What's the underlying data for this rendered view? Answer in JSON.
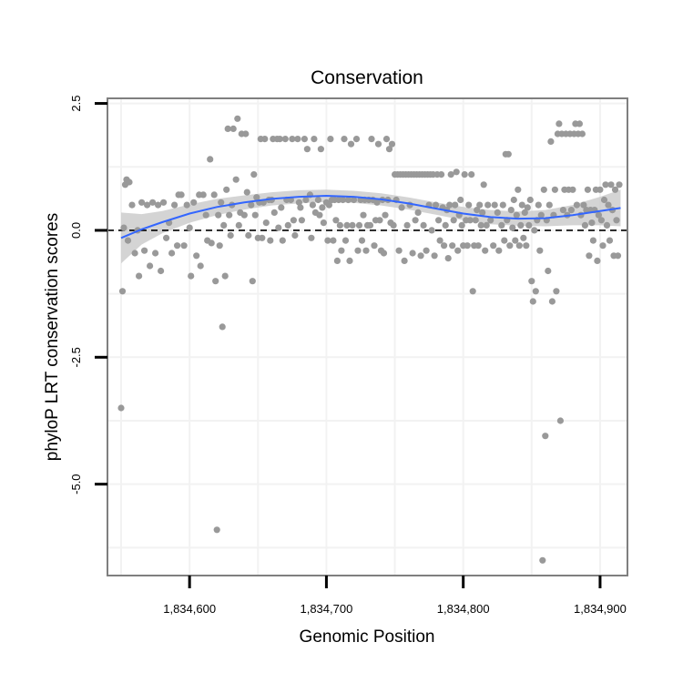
{
  "chart_data": {
    "type": "scatter",
    "title": "Conservation",
    "xlabel": "Genomic Position",
    "ylabel": "phyloP LRT conservation scores",
    "xlim": [
      1834540,
      1834920
    ],
    "ylim": [
      -6.8,
      2.6
    ],
    "x_ticks": [
      {
        "value": 1834600,
        "label": "1,834,600"
      },
      {
        "value": 1834700,
        "label": "1,834,700"
      },
      {
        "value": 1834800,
        "label": "1,834,800"
      },
      {
        "value": 1834900,
        "label": "1,834,900"
      }
    ],
    "y_ticks": [
      {
        "value": 2.5,
        "label": "2.5"
      },
      {
        "value": 0,
        "label": "0.0"
      },
      {
        "value": -2.5,
        "label": "-2.5"
      },
      {
        "value": -5,
        "label": "-5.0"
      }
    ],
    "grid": true,
    "reference_line": {
      "y": 0,
      "style": "dashed"
    },
    "point_color": "#999999",
    "smooth_color": "#3366ff",
    "ribbon_color": "#cccccc",
    "points": [
      [
        1834550,
        -3.5
      ],
      [
        1834551,
        -1.2
      ],
      [
        1834552,
        0.05
      ],
      [
        1834553,
        0.9
      ],
      [
        1834554,
        1.0
      ],
      [
        1834555,
        -0.2
      ],
      [
        1834556,
        0.95
      ],
      [
        1834558,
        0.5
      ],
      [
        1834560,
        -0.45
      ],
      [
        1834562,
        0.0
      ],
      [
        1834563,
        -0.9
      ],
      [
        1834565,
        0.55
      ],
      [
        1834567,
        -0.4
      ],
      [
        1834569,
        0.5
      ],
      [
        1834571,
        -0.7
      ],
      [
        1834573,
        0.55
      ],
      [
        1834575,
        -0.45
      ],
      [
        1834577,
        0.5
      ],
      [
        1834579,
        -0.8
      ],
      [
        1834581,
        0.55
      ],
      [
        1834583,
        -0.15
      ],
      [
        1834585,
        0.15
      ],
      [
        1834587,
        -0.45
      ],
      [
        1834589,
        0.5
      ],
      [
        1834591,
        -0.3
      ],
      [
        1834592,
        0.7
      ],
      [
        1834594,
        0.7
      ],
      [
        1834596,
        -0.3
      ],
      [
        1834598,
        0.5
      ],
      [
        1834600,
        0.05
      ],
      [
        1834601,
        -0.9
      ],
      [
        1834603,
        0.55
      ],
      [
        1834605,
        -0.5
      ],
      [
        1834607,
        0.7
      ],
      [
        1834608,
        -0.7
      ],
      [
        1834610,
        0.7
      ],
      [
        1834612,
        0.3
      ],
      [
        1834613,
        -0.2
      ],
      [
        1834615,
        1.4
      ],
      [
        1834616,
        -0.25
      ],
      [
        1834618,
        0.7
      ],
      [
        1834619,
        -1.0
      ],
      [
        1834620,
        -5.9
      ],
      [
        1834621,
        0.3
      ],
      [
        1834622,
        -0.3
      ],
      [
        1834623,
        0.55
      ],
      [
        1834624,
        -1.9
      ],
      [
        1834625,
        0.1
      ],
      [
        1834626,
        -0.9
      ],
      [
        1834627,
        0.8
      ],
      [
        1834628,
        2.0
      ],
      [
        1834629,
        0.3
      ],
      [
        1834630,
        -0.1
      ],
      [
        1834631,
        0.5
      ],
      [
        1834632,
        2.0
      ],
      [
        1834634,
        1.0
      ],
      [
        1834635,
        2.2
      ],
      [
        1834636,
        0.1
      ],
      [
        1834637,
        0.35
      ],
      [
        1834638,
        1.9
      ],
      [
        1834640,
        0.3
      ],
      [
        1834641,
        1.9
      ],
      [
        1834642,
        0.75
      ],
      [
        1834643,
        -0.1
      ],
      [
        1834645,
        0.5
      ],
      [
        1834646,
        -1.0
      ],
      [
        1834647,
        1.1
      ],
      [
        1834648,
        0.3
      ],
      [
        1834649,
        0.65
      ],
      [
        1834650,
        -0.15
      ],
      [
        1834651,
        0.55
      ],
      [
        1834652,
        1.8
      ],
      [
        1834653,
        -0.15
      ],
      [
        1834654,
        0.55
      ],
      [
        1834655,
        1.8
      ],
      [
        1834656,
        0.15
      ],
      [
        1834658,
        0.6
      ],
      [
        1834659,
        -0.2
      ],
      [
        1834660,
        0.6
      ],
      [
        1834661,
        1.8
      ],
      [
        1834662,
        0.35
      ],
      [
        1834664,
        1.8
      ],
      [
        1834665,
        0.05
      ],
      [
        1834666,
        1.8
      ],
      [
        1834667,
        0.45
      ],
      [
        1834668,
        -0.2
      ],
      [
        1834670,
        1.8
      ],
      [
        1834671,
        0.6
      ],
      [
        1834672,
        0.1
      ],
      [
        1834674,
        0.6
      ],
      [
        1834675,
        1.8
      ],
      [
        1834676,
        0.2
      ],
      [
        1834677,
        -0.1
      ],
      [
        1834679,
        1.8
      ],
      [
        1834680,
        0.55
      ],
      [
        1834681,
        0.45
      ],
      [
        1834682,
        0.2
      ],
      [
        1834684,
        1.8
      ],
      [
        1834685,
        0.6
      ],
      [
        1834686,
        1.6
      ],
      [
        1834688,
        0.7
      ],
      [
        1834689,
        -0.15
      ],
      [
        1834690,
        0.5
      ],
      [
        1834691,
        1.8
      ],
      [
        1834692,
        0.35
      ],
      [
        1834694,
        0.6
      ],
      [
        1834695,
        0.3
      ],
      [
        1834696,
        1.6
      ],
      [
        1834697,
        0.45
      ],
      [
        1834698,
        0.15
      ],
      [
        1834700,
        0.55
      ],
      [
        1834701,
        -0.2
      ],
      [
        1834702,
        0.5
      ],
      [
        1834703,
        1.8
      ],
      [
        1834704,
        0.6
      ],
      [
        1834705,
        -0.2
      ],
      [
        1834706,
        0.6
      ],
      [
        1834707,
        0.2
      ],
      [
        1834708,
        -0.6
      ],
      [
        1834709,
        0.6
      ],
      [
        1834710,
        0.1
      ],
      [
        1834711,
        -0.4
      ],
      [
        1834712,
        0.6
      ],
      [
        1834713,
        1.8
      ],
      [
        1834714,
        -0.2
      ],
      [
        1834715,
        0.1
      ],
      [
        1834716,
        0.6
      ],
      [
        1834717,
        -0.6
      ],
      [
        1834718,
        1.7
      ],
      [
        1834719,
        0.1
      ],
      [
        1834720,
        0.6
      ],
      [
        1834722,
        1.8
      ],
      [
        1834723,
        -0.4
      ],
      [
        1834724,
        0.1
      ],
      [
        1834725,
        0.6
      ],
      [
        1834726,
        -0.2
      ],
      [
        1834727,
        0.3
      ],
      [
        1834728,
        0.6
      ],
      [
        1834729,
        -0.4
      ],
      [
        1834730,
        0.1
      ],
      [
        1834731,
        0.6
      ],
      [
        1834732,
        0.1
      ],
      [
        1834733,
        1.8
      ],
      [
        1834734,
        0.6
      ],
      [
        1834735,
        -0.3
      ],
      [
        1834736,
        0.2
      ],
      [
        1834737,
        0.55
      ],
      [
        1834738,
        1.7
      ],
      [
        1834739,
        0.2
      ],
      [
        1834740,
        -0.4
      ],
      [
        1834741,
        0.6
      ],
      [
        1834742,
        -0.45
      ],
      [
        1834743,
        0.3
      ],
      [
        1834744,
        1.8
      ],
      [
        1834745,
        0.6
      ],
      [
        1834746,
        1.6
      ],
      [
        1834747,
        0.15
      ],
      [
        1834748,
        1.7
      ],
      [
        1834749,
        0.1
      ],
      [
        1834750,
        1.1
      ],
      [
        1834751,
        0.6
      ],
      [
        1834752,
        1.1
      ],
      [
        1834753,
        -0.4
      ],
      [
        1834754,
        1.1
      ],
      [
        1834755,
        0.45
      ],
      [
        1834756,
        1.1
      ],
      [
        1834757,
        -0.6
      ],
      [
        1834758,
        1.1
      ],
      [
        1834759,
        0.1
      ],
      [
        1834760,
        1.1
      ],
      [
        1834761,
        0.5
      ],
      [
        1834762,
        1.1
      ],
      [
        1834763,
        -0.45
      ],
      [
        1834764,
        1.1
      ],
      [
        1834765,
        0.2
      ],
      [
        1834766,
        1.1
      ],
      [
        1834767,
        0.35
      ],
      [
        1834768,
        1.1
      ],
      [
        1834769,
        -0.5
      ],
      [
        1834770,
        1.1
      ],
      [
        1834771,
        0.1
      ],
      [
        1834772,
        1.1
      ],
      [
        1834773,
        -0.4
      ],
      [
        1834774,
        1.1
      ],
      [
        1834775,
        0.5
      ],
      [
        1834776,
        1.1
      ],
      [
        1834777,
        0.0
      ],
      [
        1834778,
        1.1
      ],
      [
        1834779,
        -0.5
      ],
      [
        1834780,
        0.5
      ],
      [
        1834781,
        1.1
      ],
      [
        1834782,
        0.2
      ],
      [
        1834783,
        -0.2
      ],
      [
        1834784,
        1.1
      ],
      [
        1834785,
        0.45
      ],
      [
        1834786,
        -0.3
      ],
      [
        1834787,
        0.1
      ],
      [
        1834788,
        0.4
      ],
      [
        1834789,
        -0.55
      ],
      [
        1834790,
        0.5
      ],
      [
        1834791,
        1.1
      ],
      [
        1834792,
        -0.3
      ],
      [
        1834793,
        0.2
      ],
      [
        1834794,
        0.5
      ],
      [
        1834795,
        1.15
      ],
      [
        1834796,
        -0.4
      ],
      [
        1834797,
        0.3
      ],
      [
        1834798,
        0.6
      ],
      [
        1834799,
        0.1
      ],
      [
        1834800,
        -0.3
      ],
      [
        1834801,
        1.1
      ],
      [
        1834802,
        0.2
      ],
      [
        1834803,
        -0.3
      ],
      [
        1834804,
        0.5
      ],
      [
        1834805,
        0.2
      ],
      [
        1834806,
        1.1
      ],
      [
        1834807,
        -1.2
      ],
      [
        1834808,
        -0.3
      ],
      [
        1834809,
        0.2
      ],
      [
        1834810,
        0.4
      ],
      [
        1834811,
        -0.3
      ],
      [
        1834812,
        0.5
      ],
      [
        1834813,
        0.1
      ],
      [
        1834814,
        0.35
      ],
      [
        1834815,
        0.9
      ],
      [
        1834816,
        -0.4
      ],
      [
        1834817,
        0.1
      ],
      [
        1834818,
        0.5
      ],
      [
        1834820,
        0.2
      ],
      [
        1834822,
        -0.3
      ],
      [
        1834823,
        0.5
      ],
      [
        1834825,
        0.35
      ],
      [
        1834826,
        -0.4
      ],
      [
        1834828,
        0.1
      ],
      [
        1834829,
        0.5
      ],
      [
        1834830,
        -0.2
      ],
      [
        1834831,
        1.5
      ],
      [
        1834832,
        0.2
      ],
      [
        1834833,
        1.5
      ],
      [
        1834834,
        -0.3
      ],
      [
        1834835,
        0.4
      ],
      [
        1834836,
        0.05
      ],
      [
        1834837,
        0.6
      ],
      [
        1834838,
        -0.2
      ],
      [
        1834839,
        0.3
      ],
      [
        1834840,
        0.8
      ],
      [
        1834841,
        -0.3
      ],
      [
        1834842,
        0.1
      ],
      [
        1834843,
        0.5
      ],
      [
        1834844,
        -0.15
      ],
      [
        1834845,
        0.35
      ],
      [
        1834846,
        -0.3
      ],
      [
        1834847,
        0.45
      ],
      [
        1834848,
        0.1
      ],
      [
        1834849,
        0.6
      ],
      [
        1834850,
        -1.0
      ],
      [
        1834851,
        -1.4
      ],
      [
        1834852,
        0.0
      ],
      [
        1834853,
        -1.2
      ],
      [
        1834854,
        0.2
      ],
      [
        1834855,
        0.5
      ],
      [
        1834856,
        -0.4
      ],
      [
        1834857,
        0.3
      ],
      [
        1834858,
        -6.5
      ],
      [
        1834859,
        0.8
      ],
      [
        1834860,
        -4.05
      ],
      [
        1834861,
        0.2
      ],
      [
        1834862,
        -0.8
      ],
      [
        1834863,
        0.5
      ],
      [
        1834864,
        1.75
      ],
      [
        1834865,
        -1.4
      ],
      [
        1834866,
        0.3
      ],
      [
        1834867,
        0.8
      ],
      [
        1834868,
        -1.2
      ],
      [
        1834869,
        1.9
      ],
      [
        1834870,
        2.1
      ],
      [
        1834871,
        -3.75
      ],
      [
        1834872,
        1.9
      ],
      [
        1834873,
        0.4
      ],
      [
        1834874,
        0.8
      ],
      [
        1834875,
        1.9
      ],
      [
        1834876,
        0.3
      ],
      [
        1834877,
        0.8
      ],
      [
        1834878,
        1.9
      ],
      [
        1834879,
        0.4
      ],
      [
        1834880,
        0.8
      ],
      [
        1834881,
        1.9
      ],
      [
        1834882,
        2.1
      ],
      [
        1834883,
        0.5
      ],
      [
        1834884,
        1.9
      ],
      [
        1834885,
        2.1
      ],
      [
        1834886,
        0.3
      ],
      [
        1834887,
        1.9
      ],
      [
        1834888,
        0.5
      ],
      [
        1834889,
        0.1
      ],
      [
        1834890,
        0.4
      ],
      [
        1834891,
        0.8
      ],
      [
        1834892,
        -0.5
      ],
      [
        1834893,
        0.4
      ],
      [
        1834894,
        0.15
      ],
      [
        1834895,
        -0.2
      ],
      [
        1834896,
        0.4
      ],
      [
        1834897,
        0.8
      ],
      [
        1834898,
        -0.6
      ],
      [
        1834899,
        0.3
      ],
      [
        1834900,
        0.8
      ],
      [
        1834901,
        0.2
      ],
      [
        1834902,
        -0.3
      ],
      [
        1834903,
        0.6
      ],
      [
        1834904,
        0.9
      ],
      [
        1834905,
        0.1
      ],
      [
        1834906,
        0.5
      ],
      [
        1834907,
        -0.2
      ],
      [
        1834908,
        0.9
      ],
      [
        1834909,
        0.4
      ],
      [
        1834910,
        -0.5
      ],
      [
        1834911,
        0.8
      ],
      [
        1834912,
        0.2
      ],
      [
        1834913,
        -0.5
      ],
      [
        1834914,
        0.9
      ]
    ],
    "smooth": [
      {
        "x": 1834550,
        "y": -0.15,
        "lo": -0.65,
        "hi": 0.35
      },
      {
        "x": 1834565,
        "y": 0.02,
        "lo": -0.28,
        "hi": 0.32
      },
      {
        "x": 1834580,
        "y": 0.16,
        "lo": -0.06,
        "hi": 0.38
      },
      {
        "x": 1834600,
        "y": 0.33,
        "lo": 0.15,
        "hi": 0.51
      },
      {
        "x": 1834620,
        "y": 0.46,
        "lo": 0.3,
        "hi": 0.62
      },
      {
        "x": 1834640,
        "y": 0.55,
        "lo": 0.41,
        "hi": 0.69
      },
      {
        "x": 1834660,
        "y": 0.62,
        "lo": 0.49,
        "hi": 0.75
      },
      {
        "x": 1834680,
        "y": 0.66,
        "lo": 0.53,
        "hi": 0.79
      },
      {
        "x": 1834700,
        "y": 0.68,
        "lo": 0.56,
        "hi": 0.8
      },
      {
        "x": 1834720,
        "y": 0.66,
        "lo": 0.54,
        "hi": 0.78
      },
      {
        "x": 1834740,
        "y": 0.61,
        "lo": 0.49,
        "hi": 0.73
      },
      {
        "x": 1834760,
        "y": 0.53,
        "lo": 0.41,
        "hi": 0.65
      },
      {
        "x": 1834780,
        "y": 0.43,
        "lo": 0.31,
        "hi": 0.55
      },
      {
        "x": 1834800,
        "y": 0.33,
        "lo": 0.2,
        "hi": 0.46
      },
      {
        "x": 1834820,
        "y": 0.26,
        "lo": 0.12,
        "hi": 0.4
      },
      {
        "x": 1834840,
        "y": 0.23,
        "lo": 0.09,
        "hi": 0.37
      },
      {
        "x": 1834860,
        "y": 0.24,
        "lo": 0.08,
        "hi": 0.4
      },
      {
        "x": 1834880,
        "y": 0.3,
        "lo": 0.1,
        "hi": 0.5
      },
      {
        "x": 1834900,
        "y": 0.38,
        "lo": 0.1,
        "hi": 0.66
      },
      {
        "x": 1834915,
        "y": 0.44,
        "lo": 0.08,
        "hi": 0.8
      }
    ]
  }
}
